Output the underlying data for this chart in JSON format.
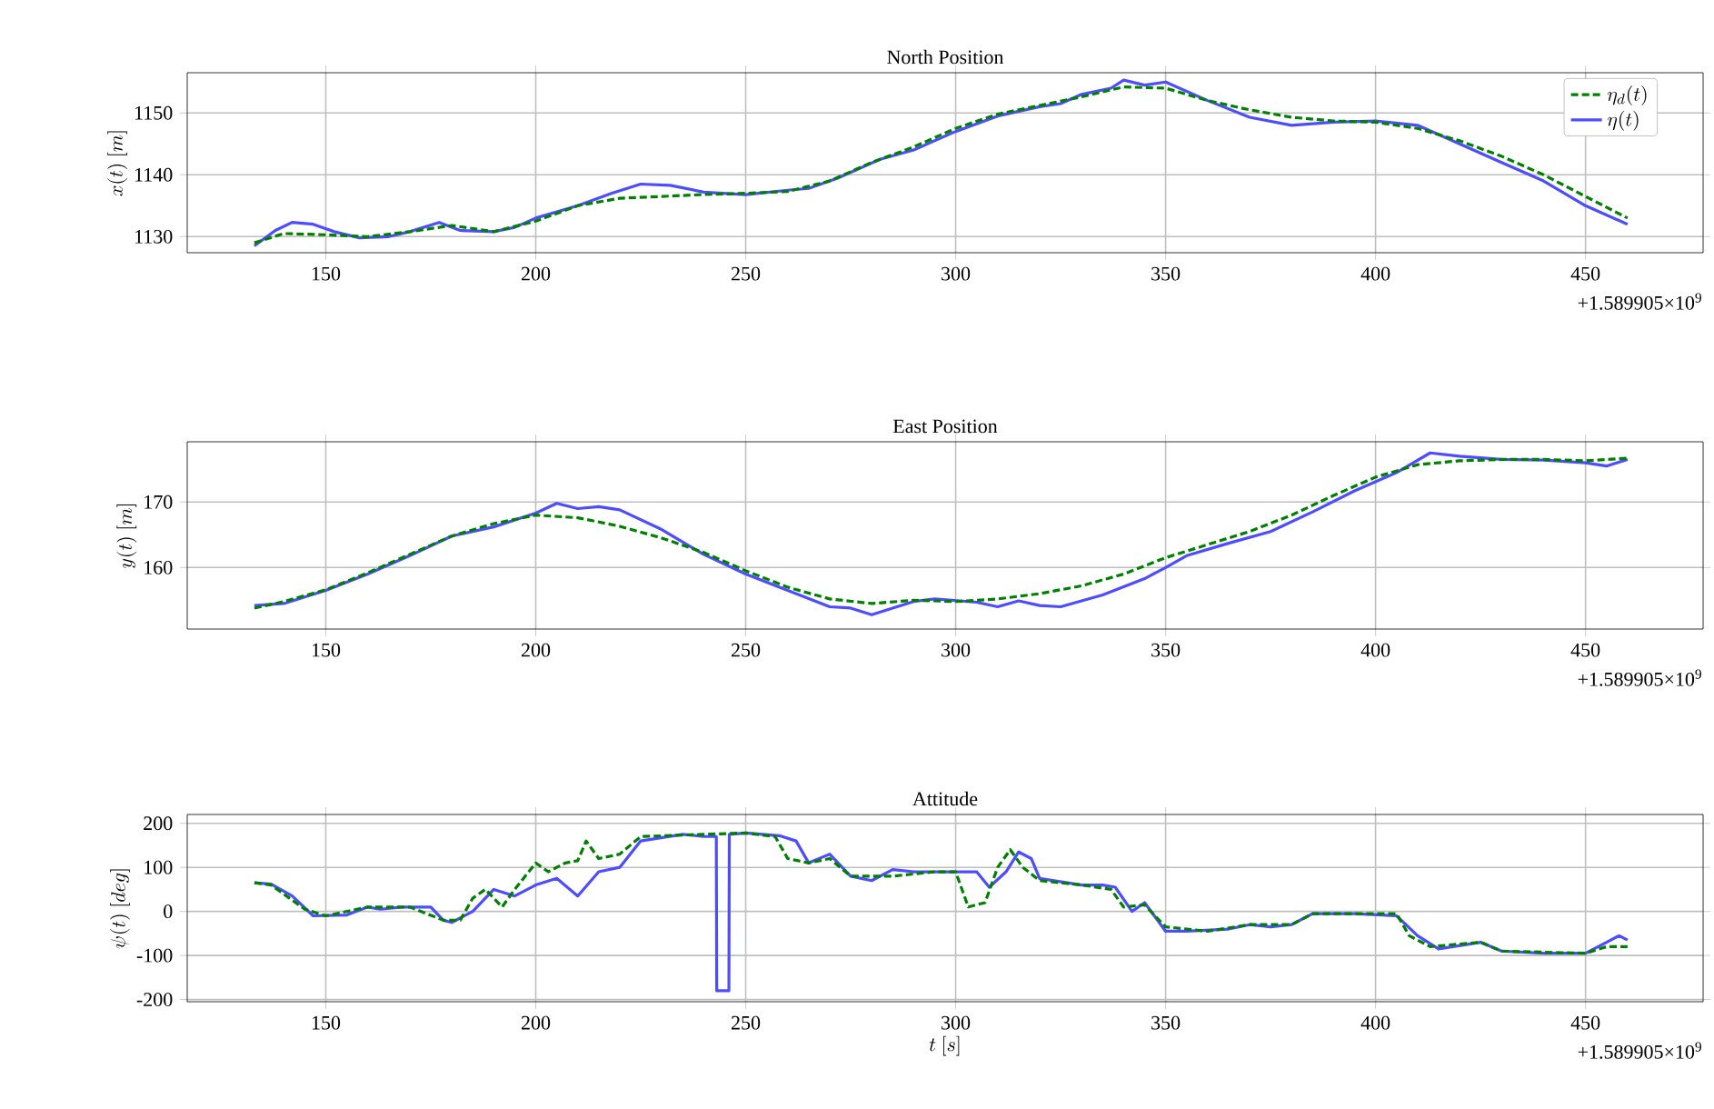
{
  "chart_data": [
    {
      "type": "line",
      "title": "North Position",
      "ylabel": "x(t)\\ [m]",
      "xlim": [
        117,
        478
      ],
      "ylim": [
        1127.4,
        1156.5
      ],
      "xticks": [
        150,
        200,
        250,
        300,
        350,
        400,
        450
      ],
      "yticks": [
        1130,
        1140,
        1150
      ],
      "grid": true,
      "legend": "top right",
      "annotations": [
        "+1.589905×10$^{9}$"
      ],
      "series": [
        {
          "name": "\\eta_d(t)",
          "color": "#008000",
          "line_style": "dashed",
          "x": [
            133,
            140,
            150,
            160,
            170,
            180,
            190,
            200,
            210,
            220,
            230,
            240,
            250,
            260,
            270,
            280,
            290,
            300,
            310,
            320,
            330,
            340,
            350,
            360,
            370,
            380,
            390,
            400,
            410,
            420,
            430,
            440,
            450,
            460
          ],
          "values": [
            1129,
            1130.5,
            1130.3,
            1130,
            1130.8,
            1131.8,
            1130.8,
            1132.5,
            1135,
            1136.2,
            1136.5,
            1136.8,
            1137,
            1137.3,
            1139,
            1142,
            1144.5,
            1147.5,
            1149.8,
            1151.2,
            1152.6,
            1154.2,
            1154,
            1152,
            1150.5,
            1149.3,
            1148.7,
            1148.5,
            1147.5,
            1145.5,
            1143,
            1140,
            1136.5,
            1133
          ]
        },
        {
          "name": "\\eta(t)",
          "color": "#4d4dff",
          "line_style": "solid",
          "x": [
            133,
            138,
            142,
            147,
            152,
            158,
            165,
            170,
            177,
            182,
            190,
            195,
            200,
            210,
            218,
            225,
            232,
            240,
            250,
            260,
            265,
            272,
            282,
            290,
            300,
            310,
            320,
            325,
            330,
            337,
            340,
            345,
            350,
            360,
            370,
            380,
            390,
            400,
            410,
            420,
            430,
            440,
            450,
            460
          ],
          "values": [
            1128.5,
            1131,
            1132.3,
            1132,
            1130.8,
            1129.8,
            1130,
            1130.8,
            1132.3,
            1131,
            1130.8,
            1131.5,
            1133,
            1135,
            1137,
            1138.5,
            1138.3,
            1137.2,
            1136.8,
            1137.5,
            1137.8,
            1139.5,
            1142.5,
            1144,
            1147,
            1149.5,
            1151,
            1151.5,
            1153,
            1154,
            1155.3,
            1154.5,
            1155,
            1152,
            1149.3,
            1148,
            1148.5,
            1148.7,
            1148,
            1145,
            1142,
            1139,
            1135,
            1132
          ]
        }
      ]
    },
    {
      "type": "line",
      "title": "East Position",
      "ylabel": "y(t)\\ [m]",
      "xlim": [
        117,
        478
      ],
      "ylim": [
        150.6,
        179.2
      ],
      "xticks": [
        150,
        200,
        250,
        300,
        350,
        400,
        450
      ],
      "yticks": [
        160,
        170
      ],
      "grid": true,
      "annotations": [
        "+1.589905×10$^{9}$"
      ],
      "series": [
        {
          "color": "#008000",
          "line_style": "dashed",
          "x": [
            133,
            140,
            150,
            160,
            170,
            180,
            190,
            200,
            210,
            220,
            230,
            240,
            250,
            260,
            270,
            280,
            290,
            300,
            310,
            320,
            330,
            340,
            350,
            360,
            370,
            380,
            390,
            400,
            410,
            420,
            430,
            440,
            450,
            460
          ],
          "values": [
            153.8,
            154.8,
            156.6,
            159.2,
            162,
            164.8,
            166.7,
            168,
            167.6,
            166.3,
            164.5,
            162.3,
            159.5,
            157,
            155.2,
            154.5,
            155,
            154.8,
            155.2,
            156,
            157.2,
            159,
            161.5,
            163.5,
            165.5,
            168,
            171,
            173.8,
            175.7,
            176.3,
            176.5,
            176.5,
            176.3,
            176.7
          ]
        },
        {
          "color": "#4d4dff",
          "line_style": "solid",
          "x": [
            133,
            140,
            150,
            160,
            170,
            180,
            190,
            200,
            205,
            210,
            215,
            220,
            230,
            240,
            250,
            260,
            270,
            275,
            280,
            290,
            295,
            305,
            310,
            315,
            320,
            325,
            335,
            345,
            350,
            355,
            365,
            375,
            385,
            395,
            405,
            413,
            420,
            430,
            440,
            450,
            455,
            460
          ],
          "values": [
            154.2,
            154.5,
            156.5,
            159,
            161.8,
            164.8,
            166.2,
            168.3,
            169.8,
            169,
            169.3,
            168.8,
            165.8,
            162,
            159,
            156.5,
            154,
            153.8,
            152.8,
            154.8,
            155.2,
            154.7,
            154,
            154.9,
            154.2,
            154,
            155.8,
            158.3,
            160,
            161.8,
            163.7,
            165.5,
            168.5,
            171.7,
            174.5,
            177.5,
            177,
            176.5,
            176.4,
            176,
            175.5,
            176.5
          ]
        }
      ]
    },
    {
      "type": "line",
      "title": "Attitude",
      "xlabel": "t\\ [s]",
      "ylabel": "\\psi(t)\\ [deg]",
      "xlim": [
        117,
        478
      ],
      "ylim": [
        -205,
        220
      ],
      "xticks": [
        150,
        200,
        250,
        300,
        350,
        400,
        450
      ],
      "yticks": [
        -200,
        -100,
        0,
        100,
        200
      ],
      "grid": true,
      "annotations": [
        "+1.589905×10$^{9}$"
      ],
      "series": [
        {
          "color": "#008000",
          "line_style": "dashed",
          "x": [
            133,
            137,
            145,
            150,
            160,
            170,
            178,
            182,
            185,
            188,
            192,
            195,
            200,
            203,
            207,
            210,
            212,
            215,
            220,
            225,
            240,
            250,
            257,
            260,
            265,
            270,
            275,
            285,
            295,
            300,
            303,
            307,
            310,
            313,
            316,
            320,
            330,
            337,
            340,
            345,
            350,
            360,
            370,
            380,
            385,
            400,
            405,
            408,
            413,
            425,
            430,
            450,
            455,
            460
          ],
          "values": [
            65,
            60,
            5,
            -10,
            10,
            10,
            -20,
            -20,
            30,
            50,
            10,
            50,
            110,
            90,
            110,
            115,
            160,
            120,
            130,
            170,
            175,
            178,
            170,
            120,
            110,
            120,
            80,
            80,
            90,
            90,
            10,
            20,
            100,
            140,
            100,
            70,
            60,
            50,
            10,
            15,
            -35,
            -45,
            -30,
            -30,
            -5,
            -5,
            -5,
            -55,
            -80,
            -70,
            -90,
            -95,
            -80,
            -80
          ]
        },
        {
          "color": "#4d4dff",
          "line_style": "solid",
          "x": [
            133,
            137,
            142,
            147,
            155,
            160,
            163,
            168,
            175,
            178,
            180,
            185,
            190,
            195,
            200,
            205,
            210,
            215,
            220,
            225,
            235,
            240,
            243,
            243.1,
            246,
            246.1,
            250,
            258,
            262,
            265,
            270,
            275,
            280,
            285,
            290,
            300,
            305,
            308,
            312,
            315,
            318,
            320,
            330,
            335,
            338,
            342,
            345,
            350,
            355,
            365,
            370,
            375,
            380,
            385,
            395,
            405,
            410,
            415,
            425,
            430,
            440,
            450,
            455,
            458,
            460
          ],
          "values": [
            65,
            62,
            35,
            -10,
            -8,
            10,
            5,
            10,
            10,
            -20,
            -25,
            0,
            50,
            35,
            60,
            75,
            35,
            90,
            100,
            160,
            175,
            170,
            170,
            -180,
            -180,
            175,
            178,
            172,
            160,
            110,
            130,
            80,
            70,
            95,
            90,
            90,
            90,
            55,
            90,
            135,
            120,
            75,
            60,
            60,
            55,
            0,
            20,
            -45,
            -45,
            -40,
            -30,
            -35,
            -30,
            -5,
            -5,
            -10,
            -55,
            -85,
            -70,
            -90,
            -95,
            -95,
            -70,
            -55,
            -65
          ]
        }
      ]
    }
  ]
}
